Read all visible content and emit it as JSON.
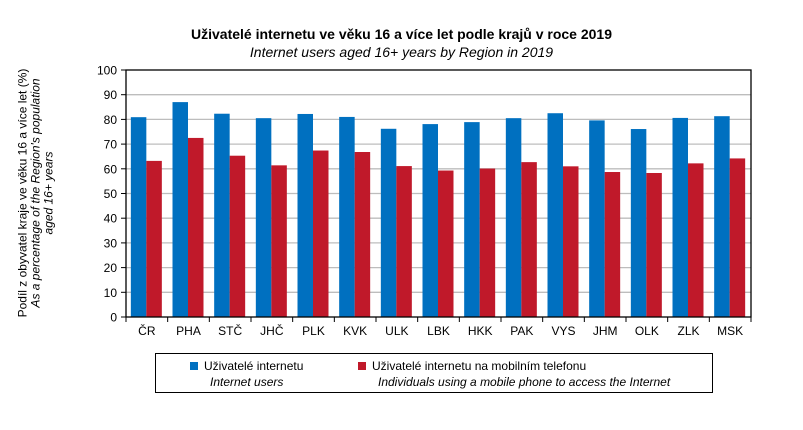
{
  "chart_data": {
    "type": "bar",
    "title": "Uživatelé internetu ve věku 16 a více let podle krajů v roce 2019",
    "subtitle": "Internet users aged 16+ years by Region in 2019",
    "xlabel": "",
    "ylabel": "Podíl z obyvatel kraje ve věku 16 a více let (%)",
    "ylabel_en": [
      "As a percentage of the Region's population",
      "aged 16+ years"
    ],
    "ylim": [
      0,
      100
    ],
    "yticks": [
      0,
      10,
      20,
      30,
      40,
      50,
      60,
      70,
      80,
      90,
      100
    ],
    "grid": true,
    "legend_placement": "bottom",
    "categories": [
      "ČR",
      "PHA",
      "STČ",
      "JHČ",
      "PLK",
      "KVK",
      "ULK",
      "LBK",
      "HKK",
      "PAK",
      "VYS",
      "JHM",
      "OLK",
      "ZLK",
      "MSK"
    ],
    "series": [
      {
        "name": "Uživatelé internetu",
        "name_en": "Internet users",
        "color": "#0070C0",
        "values": [
          80.9,
          87.0,
          82.3,
          80.5,
          82.2,
          81.0,
          76.2,
          78.1,
          78.9,
          80.5,
          82.5,
          79.6,
          76.1,
          80.6,
          81.3
        ]
      },
      {
        "name": "Uživatelé internetu na mobilním telefonu",
        "name_en": "Individuals using a mobile phone to access the Internet",
        "color": "#C0192A",
        "values": [
          63.2,
          72.5,
          65.3,
          61.4,
          67.4,
          66.8,
          61.1,
          59.3,
          60.1,
          62.7,
          61.0,
          58.7,
          58.3,
          62.2,
          64.2
        ]
      }
    ]
  }
}
